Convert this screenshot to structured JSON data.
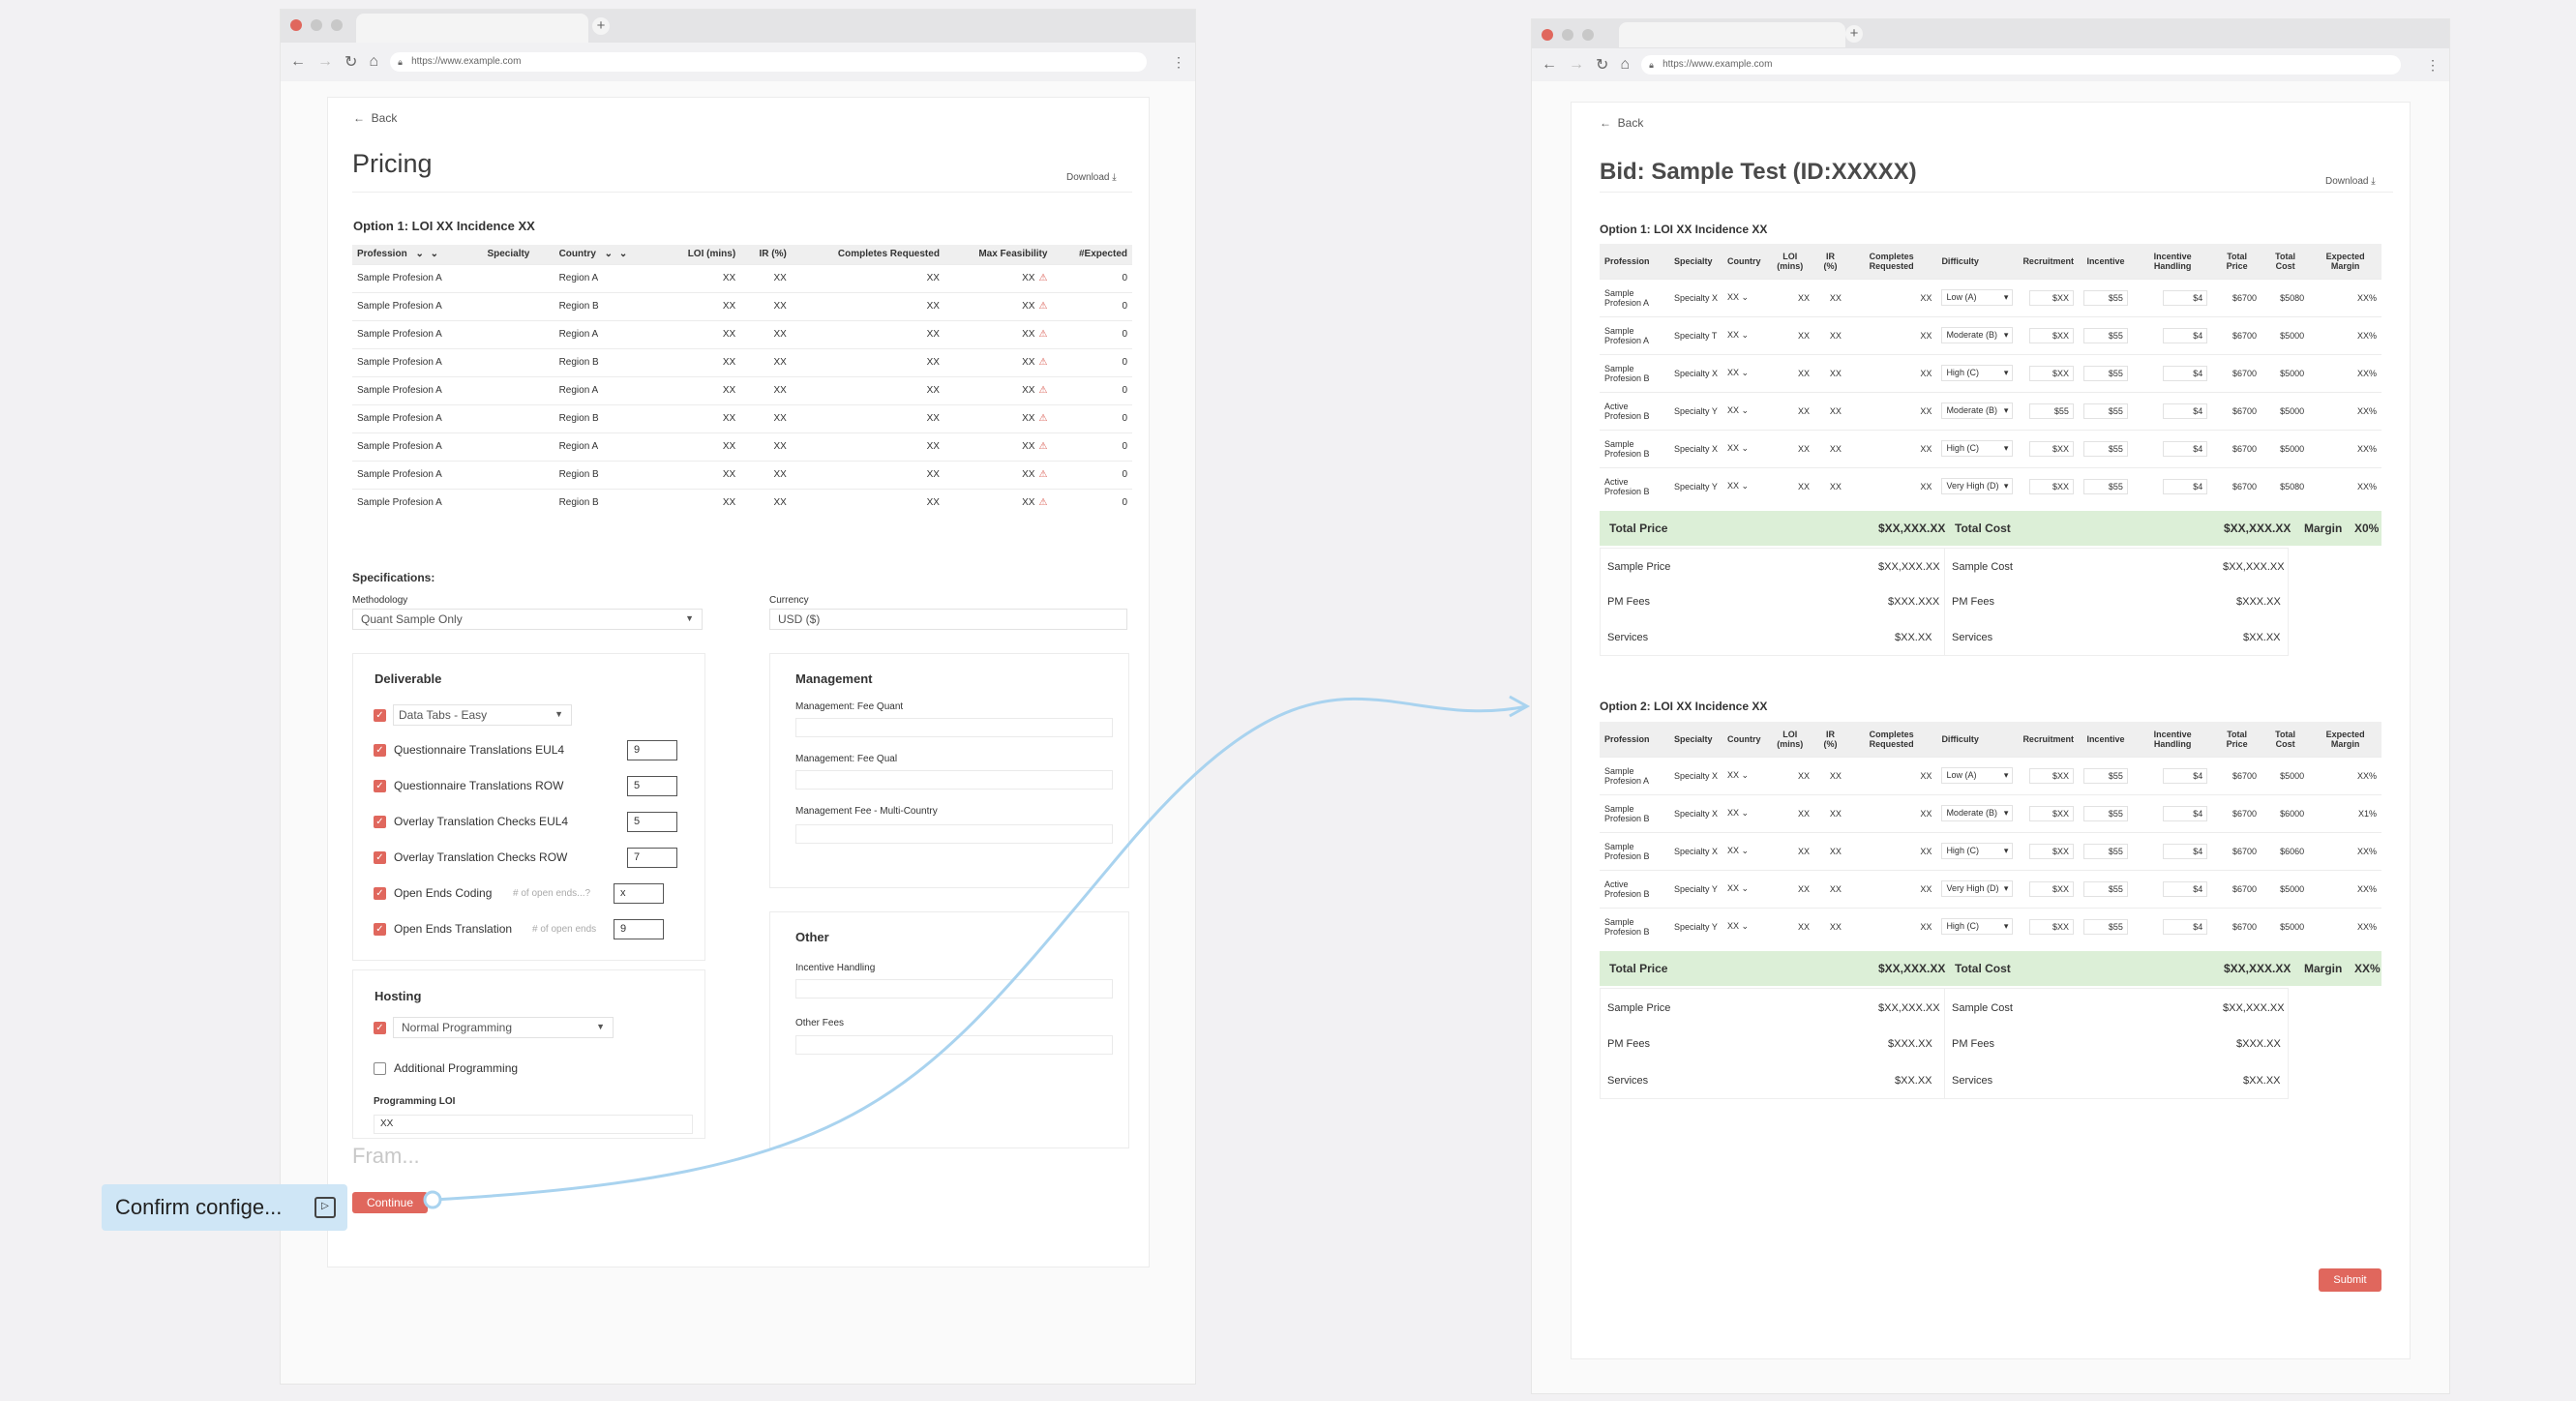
{
  "left": {
    "url": "https://www.example.com",
    "back": "Back",
    "title": "Pricing",
    "download": "Download",
    "option_title": "Option 1:  LOI XX Incidence XX",
    "columns": [
      "Profession",
      "Specialty",
      "Country",
      "LOI (mins)",
      "IR (%)",
      "Completes Requested",
      "Max Feasibility",
      "#Expected"
    ],
    "rows": [
      [
        "Sample Profesion A",
        "",
        "Region A",
        "XX",
        "XX",
        "XX",
        "XX",
        "0"
      ],
      [
        "Sample Profesion A",
        "",
        "Region B",
        "XX",
        "XX",
        "XX",
        "XX",
        "0"
      ],
      [
        "Sample Profesion A",
        "",
        "Region A",
        "XX",
        "XX",
        "XX",
        "XX",
        "0"
      ],
      [
        "Sample Profesion A",
        "",
        "Region B",
        "XX",
        "XX",
        "XX",
        "XX",
        "0"
      ],
      [
        "Sample Profesion A",
        "",
        "Region A",
        "XX",
        "XX",
        "XX",
        "XX",
        "0"
      ],
      [
        "Sample Profesion A",
        "",
        "Region B",
        "XX",
        "XX",
        "XX",
        "XX",
        "0"
      ],
      [
        "Sample Profesion A",
        "",
        "Region A",
        "XX",
        "XX",
        "XX",
        "XX",
        "0"
      ],
      [
        "Sample Profesion A",
        "",
        "Region B",
        "XX",
        "XX",
        "XX",
        "XX",
        "0"
      ],
      [
        "Sample Profesion A",
        "",
        "Region B",
        "XX",
        "XX",
        "XX",
        "XX",
        "0"
      ]
    ],
    "specs_title": "Specifications:",
    "methodology_label": "Methodology",
    "methodology_value": "Quant Sample Only",
    "currency_label": "Currency",
    "currency_value": "USD ($)",
    "deliverable_title": "Deliverable",
    "deliv": {
      "data_tabs": "Data Tabs - Easy",
      "qt_eul4": "Questionnaire Translations EUL4",
      "qt_eul4_v": "9",
      "qt_row": "Questionnaire Translations ROW",
      "qt_row_v": "5",
      "ot_eul4": "Overlay Translation Checks EUL4",
      "ot_eul4_v": "5",
      "ot_row": "Overlay Translation Checks ROW",
      "ot_row_v": "7",
      "oe_coding": "Open Ends Coding",
      "oe_coding_hint": "# of open ends...?",
      "oe_coding_v": "x",
      "oe_trans": "Open Ends Translation",
      "oe_trans_hint": "# of open ends",
      "oe_trans_v": "9"
    },
    "hosting_title": "Hosting",
    "hosting": {
      "normal": "Normal Programming",
      "additional": "Additional Programming",
      "loi_label": "Programming LOI",
      "loi_value": "XX"
    },
    "management_title": "Management",
    "mgmt": {
      "fee_quant": "Management: Fee Quant",
      "fee_qual": "Management: Fee Qual",
      "fee_multi": "Management Fee - Multi-Country"
    },
    "other_title": "Other",
    "other": {
      "incentive": "Incentive Handling",
      "fees": "Other Fees"
    },
    "frame": "Fram...",
    "continue": "Continue",
    "confirm": "Confirm confige..."
  },
  "right": {
    "url": "https://www.example.com",
    "back": "Back",
    "title": "Bid: Sample Test (ID:XXXXX)",
    "download": "Download",
    "columns": [
      "Profession",
      "Specialty",
      "Country",
      "LOI (mins)",
      "IR (%)",
      "Completes Requested",
      "Difficulty",
      "Recruitment",
      "Incentive",
      "Incentive Handling",
      "Total Price",
      "Total Cost",
      "Expected Margin"
    ],
    "option1": {
      "title": "Option 1:  LOI XX Incidence XX",
      "rows": [
        [
          "Sample Profesion A",
          "Specialty X",
          "XX",
          "XX",
          "XX",
          "XX",
          "Low (A)",
          "$XX",
          "$55",
          "$4",
          "$6700",
          "$5080",
          "XX%"
        ],
        [
          "Sample Profesion A",
          "Specialty T",
          "XX",
          "XX",
          "XX",
          "XX",
          "Moderate (B)",
          "$XX",
          "$55",
          "$4",
          "$6700",
          "$5000",
          "XX%"
        ],
        [
          "Sample Profesion B",
          "Specialty X",
          "XX",
          "XX",
          "XX",
          "XX",
          "High (C)",
          "$XX",
          "$55",
          "$4",
          "$6700",
          "$5000",
          "XX%"
        ],
        [
          "Active Profesion B",
          "Specialty Y",
          "XX",
          "XX",
          "XX",
          "XX",
          "Moderate (B)",
          "$55",
          "$55",
          "$4",
          "$6700",
          "$5000",
          "XX%"
        ],
        [
          "Sample Profesion B",
          "Specialty X",
          "XX",
          "XX",
          "XX",
          "XX",
          "High (C)",
          "$XX",
          "$55",
          "$4",
          "$6700",
          "$5000",
          "XX%"
        ],
        [
          "Active Profesion B",
          "Specialty Y",
          "XX",
          "XX",
          "XX",
          "XX",
          "Very High (D)",
          "$XX",
          "$55",
          "$4",
          "$6700",
          "$5080",
          "XX%"
        ]
      ],
      "total_price_label": "Total Price",
      "total_price": "$XX,XXX.XX",
      "total_cost_label": "Total Cost",
      "total_cost": "$XX,XXX.XX",
      "margin_label": "Margin",
      "margin": "X0%",
      "sample_price_label": "Sample Price",
      "sample_price": "$XX,XXX.XX",
      "sample_cost_label": "Sample Cost",
      "sample_cost": "$XX,XXX.XX",
      "pm_label": "PM Fees",
      "pm_price": "$XXX.XXX",
      "pm_cost": "$XXX.XX",
      "services_label": "Services",
      "services_price": "$XX.XX",
      "services_cost": "$XX.XX"
    },
    "option2": {
      "title": "Option 2:  LOI XX Incidence XX",
      "rows": [
        [
          "Sample Profesion A",
          "Specialty X",
          "XX",
          "XX",
          "XX",
          "XX",
          "Low (A)",
          "$XX",
          "$55",
          "$4",
          "$6700",
          "$5000",
          "XX%"
        ],
        [
          "Sample Profesion B",
          "Specialty X",
          "XX",
          "XX",
          "XX",
          "XX",
          "Moderate (B)",
          "$XX",
          "$55",
          "$4",
          "$6700",
          "$6000",
          "X1%"
        ],
        [
          "Sample Profesion B",
          "Specialty X",
          "XX",
          "XX",
          "XX",
          "XX",
          "High (C)",
          "$XX",
          "$55",
          "$4",
          "$6700",
          "$6060",
          "XX%"
        ],
        [
          "Active Profesion B",
          "Specialty Y",
          "XX",
          "XX",
          "XX",
          "XX",
          "Very High (D)",
          "$XX",
          "$55",
          "$4",
          "$6700",
          "$5000",
          "XX%"
        ],
        [
          "Sample Profesion B",
          "Specialty Y",
          "XX",
          "XX",
          "XX",
          "XX",
          "High (C)",
          "$XX",
          "$55",
          "$4",
          "$6700",
          "$5000",
          "XX%"
        ]
      ],
      "total_price_label": "Total Price",
      "total_price": "$XX,XXX.XX",
      "total_cost_label": "Total Cost",
      "total_cost": "$XX,XXX.XX",
      "margin_label": "Margin",
      "margin": "XX%",
      "sample_price_label": "Sample Price",
      "sample_price": "$XX,XXX.XX",
      "sample_cost_label": "Sample Cost",
      "sample_cost": "$XX,XXX.XX",
      "pm_label": "PM Fees",
      "pm_price": "$XXX.XX",
      "pm_cost": "$XXX.XX",
      "services_label": "Services",
      "services_price": "$XX.XX",
      "services_cost": "$XX.XX"
    },
    "submit": "Submit"
  },
  "colors": {
    "accent": "#e0675d",
    "connector": "#a9d3ef",
    "total_row": "#dcefd7"
  }
}
